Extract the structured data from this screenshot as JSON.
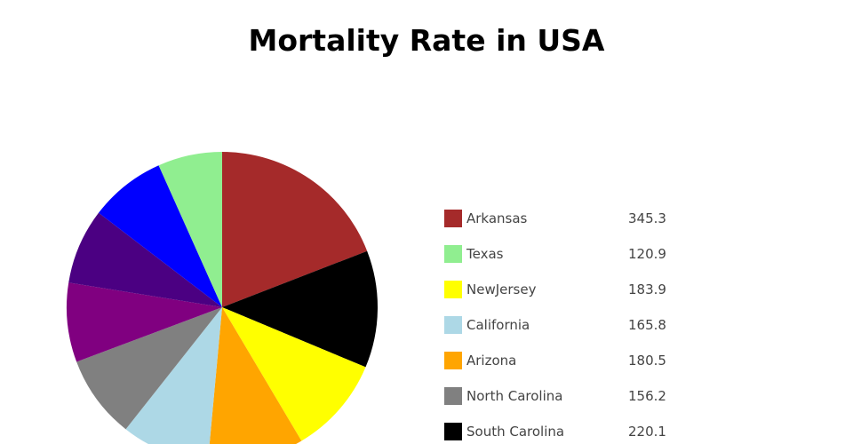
{
  "chart_data": {
    "type": "pie",
    "title": "Mortality Rate in USA",
    "start": "top",
    "direction": "clockwise",
    "slices": [
      {
        "name": "Arkansas",
        "value": 345.3,
        "color": "#a52a2a"
      },
      {
        "name": "South Carolina",
        "value": 220.1,
        "color": "#000000"
      },
      {
        "name": "NewJersey",
        "value": 183.9,
        "color": "#ffff00"
      },
      {
        "name": "Arizona",
        "value": 180.5,
        "color": "#ffa500"
      },
      {
        "name": "California",
        "value": 165.8,
        "color": "#add8e6"
      },
      {
        "name": "North Carolina",
        "value": 156.2,
        "color": "#808080"
      },
      {
        "name": null,
        "value": 149,
        "color": "#800080"
      },
      {
        "name": null,
        "value": 142,
        "color": "#4b0082"
      },
      {
        "name": null,
        "value": 143,
        "color": "#0000ff"
      },
      {
        "name": "Texas",
        "value": 120.9,
        "color": "#90ee90"
      }
    ],
    "legend_order": [
      "Arkansas",
      "Texas",
      "NewJersey",
      "California",
      "Arizona",
      "North Carolina",
      "South Carolina"
    ],
    "legend_placement": "right"
  }
}
